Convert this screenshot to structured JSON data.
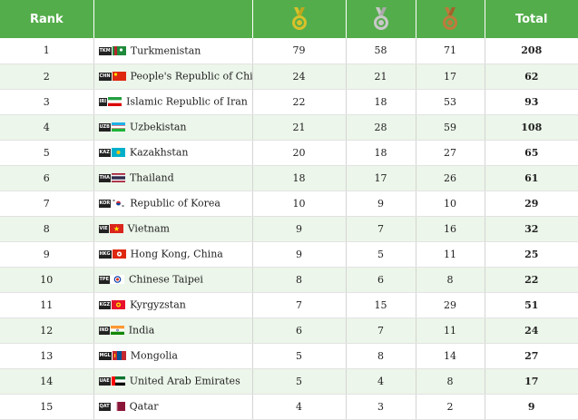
{
  "header": {
    "rank": "Rank",
    "gold_icon": "gold-medal-icon",
    "silver_icon": "silver-medal-icon",
    "bronze_icon": "bronze-medal-icon",
    "total": "Total"
  },
  "colors": {
    "header_bg": "#54ad4b",
    "row_alt_bg": "#ecf6ea",
    "gold": "#d7c12a",
    "silver": "#a9a9a9",
    "bronze": "#c07a3c"
  },
  "rows": [
    {
      "rank": "1",
      "code": "TKM",
      "name": "Turkmenistan",
      "gold": "79",
      "silver": "58",
      "bronze": "71",
      "total": "208"
    },
    {
      "rank": "2",
      "code": "CHN",
      "name": "People's Republic of China",
      "gold": "24",
      "silver": "21",
      "bronze": "17",
      "total": "62"
    },
    {
      "rank": "3",
      "code": "IRI",
      "name": "Islamic Republic of Iran",
      "gold": "22",
      "silver": "18",
      "bronze": "53",
      "total": "93"
    },
    {
      "rank": "4",
      "code": "UZB",
      "name": "Uzbekistan",
      "gold": "21",
      "silver": "28",
      "bronze": "59",
      "total": "108"
    },
    {
      "rank": "5",
      "code": "KAZ",
      "name": "Kazakhstan",
      "gold": "20",
      "silver": "18",
      "bronze": "27",
      "total": "65"
    },
    {
      "rank": "6",
      "code": "THA",
      "name": "Thailand",
      "gold": "18",
      "silver": "17",
      "bronze": "26",
      "total": "61"
    },
    {
      "rank": "7",
      "code": "KOR",
      "name": "Republic of Korea",
      "gold": "10",
      "silver": "9",
      "bronze": "10",
      "total": "29"
    },
    {
      "rank": "8",
      "code": "VIE",
      "name": "Vietnam",
      "gold": "9",
      "silver": "7",
      "bronze": "16",
      "total": "32"
    },
    {
      "rank": "9",
      "code": "HKG",
      "name": "Hong Kong, China",
      "gold": "9",
      "silver": "5",
      "bronze": "11",
      "total": "25"
    },
    {
      "rank": "10",
      "code": "TPE",
      "name": "Chinese Taipei",
      "gold": "8",
      "silver": "6",
      "bronze": "8",
      "total": "22"
    },
    {
      "rank": "11",
      "code": "KGZ",
      "name": "Kyrgyzstan",
      "gold": "7",
      "silver": "15",
      "bronze": "29",
      "total": "51"
    },
    {
      "rank": "12",
      "code": "IND",
      "name": "India",
      "gold": "6",
      "silver": "7",
      "bronze": "11",
      "total": "24"
    },
    {
      "rank": "13",
      "code": "MGL",
      "name": "Mongolia",
      "gold": "5",
      "silver": "8",
      "bronze": "14",
      "total": "27"
    },
    {
      "rank": "14",
      "code": "UAE",
      "name": "United Arab Emirates",
      "gold": "5",
      "silver": "4",
      "bronze": "8",
      "total": "17"
    },
    {
      "rank": "15",
      "code": "QAT",
      "name": "Qatar",
      "gold": "4",
      "silver": "3",
      "bronze": "2",
      "total": "9"
    }
  ]
}
